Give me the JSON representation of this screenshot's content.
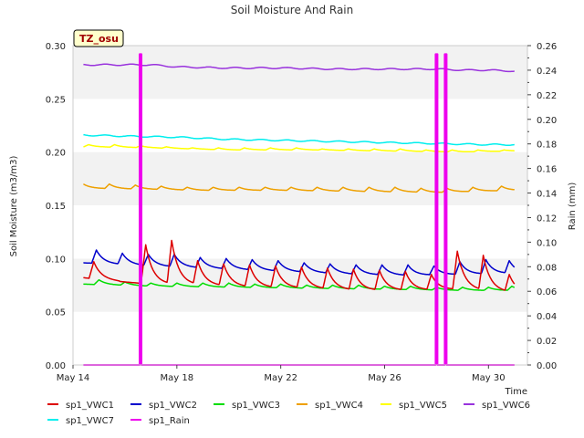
{
  "chart_data": {
    "type": "line",
    "title": "Soil Moisture And Rain",
    "tag": "TZ_osu",
    "xlabel": "Time",
    "ylabel": "Soil Moisture (m3/m3)",
    "y2label": "Rain (mm)",
    "x_range": [
      0,
      17.5
    ],
    "x_ticks": [
      {
        "x": 0,
        "label": "May 14"
      },
      {
        "x": 4,
        "label": "May 18"
      },
      {
        "x": 8,
        "label": "May 22"
      },
      {
        "x": 12,
        "label": "May 26"
      },
      {
        "x": 16,
        "label": "May 30"
      }
    ],
    "ylim": [
      0.0,
      0.3
    ],
    "y_ticks": [
      "0.00",
      "0.05",
      "0.10",
      "0.15",
      "0.20",
      "0.25",
      "0.30"
    ],
    "y2lim": [
      0.0,
      0.26
    ],
    "y2_ticks": [
      "0.00",
      "0.02",
      "0.04",
      "0.06",
      "0.08",
      "0.10",
      "0.12",
      "0.14",
      "0.16",
      "0.18",
      "0.20",
      "0.22",
      "0.24",
      "0.26"
    ],
    "grid": "horizontal bands",
    "legend_position": "bottom",
    "series": [
      {
        "name": "sp1_VWC1",
        "color": "#dd0000",
        "axis": "left",
        "base": [
          [
            0.4,
            0.082
          ],
          [
            2.0,
            0.078
          ],
          [
            3.0,
            0.076
          ],
          [
            5.0,
            0.075
          ],
          [
            7.0,
            0.073
          ],
          [
            9.0,
            0.072
          ],
          [
            11.0,
            0.07
          ],
          [
            13.0,
            0.07
          ],
          [
            15.0,
            0.071
          ],
          [
            17.0,
            0.068
          ]
        ],
        "peaks": [
          [
            0.8,
            0.097
          ],
          [
            2.8,
            0.113
          ],
          [
            3.8,
            0.117
          ],
          [
            4.8,
            0.098
          ],
          [
            5.8,
            0.095
          ],
          [
            6.8,
            0.094
          ],
          [
            7.8,
            0.093
          ],
          [
            8.8,
            0.092
          ],
          [
            9.8,
            0.091
          ],
          [
            10.8,
            0.09
          ],
          [
            11.8,
            0.089
          ],
          [
            12.8,
            0.088
          ],
          [
            13.8,
            0.085
          ],
          [
            14.8,
            0.107
          ],
          [
            15.8,
            0.103
          ],
          [
            16.8,
            0.085
          ]
        ]
      },
      {
        "name": "sp1_VWC2",
        "color": "#0000cc",
        "axis": "left",
        "base": [
          [
            0.4,
            0.096
          ],
          [
            3.0,
            0.093
          ],
          [
            5.0,
            0.091
          ],
          [
            7.0,
            0.089
          ],
          [
            9.0,
            0.087
          ],
          [
            11.0,
            0.085
          ],
          [
            13.0,
            0.084
          ],
          [
            15.0,
            0.085
          ],
          [
            17.0,
            0.086
          ]
        ],
        "peaks": [
          [
            0.9,
            0.108
          ],
          [
            1.9,
            0.105
          ],
          [
            2.9,
            0.104
          ],
          [
            3.9,
            0.104
          ],
          [
            4.9,
            0.101
          ],
          [
            5.9,
            0.1
          ],
          [
            6.9,
            0.099
          ],
          [
            7.9,
            0.098
          ],
          [
            8.9,
            0.096
          ],
          [
            9.9,
            0.095
          ],
          [
            10.9,
            0.094
          ],
          [
            11.9,
            0.094
          ],
          [
            12.9,
            0.094
          ],
          [
            13.9,
            0.093
          ],
          [
            14.9,
            0.097
          ],
          [
            15.9,
            0.099
          ],
          [
            16.8,
            0.098
          ]
        ]
      },
      {
        "name": "sp1_VWC3",
        "color": "#00dd00",
        "axis": "left",
        "base": [
          [
            0.4,
            0.076
          ],
          [
            3.0,
            0.074
          ],
          [
            6.0,
            0.073
          ],
          [
            9.0,
            0.072
          ],
          [
            12.0,
            0.071
          ],
          [
            15.0,
            0.07
          ],
          [
            17.0,
            0.07
          ]
        ],
        "peaks": [
          [
            1.0,
            0.08
          ],
          [
            2.0,
            0.078
          ],
          [
            3.0,
            0.077
          ],
          [
            4.0,
            0.077
          ],
          [
            5.0,
            0.077
          ],
          [
            6.0,
            0.077
          ],
          [
            7.0,
            0.076
          ],
          [
            8.0,
            0.076
          ],
          [
            9.0,
            0.075
          ],
          [
            10.0,
            0.075
          ],
          [
            11.0,
            0.075
          ],
          [
            12.0,
            0.074
          ],
          [
            13.0,
            0.074
          ],
          [
            14.0,
            0.073
          ],
          [
            15.0,
            0.073
          ],
          [
            16.0,
            0.073
          ],
          [
            16.9,
            0.074
          ]
        ]
      },
      {
        "name": "sp1_VWC4",
        "color": "#eea000",
        "axis": "left",
        "base": [
          [
            0.4,
            0.166
          ],
          [
            3.0,
            0.165
          ],
          [
            5.0,
            0.164
          ],
          [
            8.0,
            0.164
          ],
          [
            11.0,
            0.163
          ],
          [
            14.0,
            0.162
          ],
          [
            17.0,
            0.164
          ]
        ],
        "peaks": [
          [
            0.4,
            0.17
          ],
          [
            1.4,
            0.17
          ],
          [
            2.4,
            0.169
          ],
          [
            3.4,
            0.168
          ],
          [
            4.4,
            0.167
          ],
          [
            5.4,
            0.167
          ],
          [
            6.4,
            0.167
          ],
          [
            7.4,
            0.167
          ],
          [
            8.4,
            0.167
          ],
          [
            9.4,
            0.167
          ],
          [
            10.4,
            0.167
          ],
          [
            11.4,
            0.167
          ],
          [
            12.4,
            0.167
          ],
          [
            13.4,
            0.166
          ],
          [
            14.4,
            0.166
          ],
          [
            15.4,
            0.167
          ],
          [
            16.5,
            0.168
          ]
        ]
      },
      {
        "name": "sp1_VWC5",
        "color": "#ffff00",
        "axis": "left",
        "base": [
          [
            0.4,
            0.205
          ],
          [
            3.0,
            0.204
          ],
          [
            6.0,
            0.202
          ],
          [
            9.0,
            0.202
          ],
          [
            12.0,
            0.201
          ],
          [
            15.0,
            0.2
          ],
          [
            17.0,
            0.201
          ]
        ],
        "peaks": [
          [
            0.6,
            0.207
          ],
          [
            1.6,
            0.207
          ],
          [
            2.6,
            0.206
          ],
          [
            3.6,
            0.205
          ],
          [
            4.6,
            0.204
          ],
          [
            5.6,
            0.204
          ],
          [
            6.6,
            0.204
          ],
          [
            7.6,
            0.204
          ],
          [
            8.6,
            0.204
          ],
          [
            9.6,
            0.203
          ],
          [
            10.6,
            0.203
          ],
          [
            11.6,
            0.203
          ],
          [
            12.6,
            0.203
          ],
          [
            13.6,
            0.202
          ],
          [
            14.6,
            0.202
          ],
          [
            15.6,
            0.202
          ],
          [
            16.6,
            0.202
          ]
        ]
      },
      {
        "name": "sp1_VWC6",
        "color": "#9933dd",
        "axis": "left",
        "points": [
          [
            0.4,
            0.282
          ],
          [
            2.0,
            0.282
          ],
          [
            3.0,
            0.282
          ],
          [
            4.0,
            0.28
          ],
          [
            6.0,
            0.279
          ],
          [
            8.0,
            0.279
          ],
          [
            10.0,
            0.278
          ],
          [
            12.0,
            0.278
          ],
          [
            14.0,
            0.278
          ],
          [
            15.0,
            0.277
          ],
          [
            16.0,
            0.277
          ],
          [
            17.0,
            0.276
          ]
        ]
      },
      {
        "name": "sp1_VWC7",
        "color": "#00eeee",
        "axis": "left",
        "points": [
          [
            0.4,
            0.216
          ],
          [
            2.0,
            0.215
          ],
          [
            4.0,
            0.214
          ],
          [
            6.0,
            0.212
          ],
          [
            8.0,
            0.211
          ],
          [
            10.0,
            0.21
          ],
          [
            12.0,
            0.209
          ],
          [
            14.0,
            0.208
          ],
          [
            16.0,
            0.207
          ],
          [
            17.0,
            0.207
          ]
        ]
      },
      {
        "name": "sp1_Rain",
        "color": "#ee00ee",
        "axis": "right",
        "baseline": [
          0.4,
          17.0
        ],
        "spikes": [
          [
            2.6,
            0.253
          ],
          [
            14.0,
            0.253
          ],
          [
            14.35,
            0.253
          ]
        ]
      }
    ]
  }
}
